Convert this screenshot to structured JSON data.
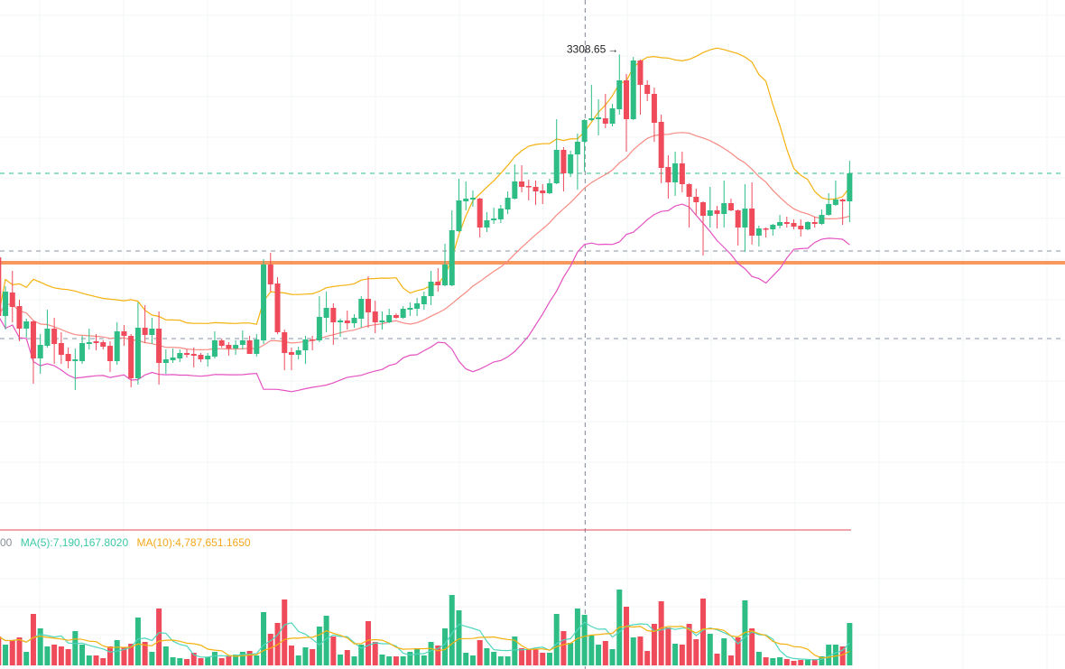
{
  "chart_data": {
    "type": "candlestick",
    "colors": {
      "up": "#2ebd85",
      "down": "#ef4b5a",
      "bb_upper": "#f5b10f",
      "bb_middle": "#f78a83",
      "bb_lower": "#e452c2",
      "support_line": "#f7985f",
      "last_price_line": "#2ebd85",
      "ref_line": "#8a94a6",
      "ma5": "#4fd6bd",
      "ma10": "#f5b10f"
    },
    "high_label": "3308.65",
    "high_arrow": "→",
    "crosshair_index": 84,
    "horizontal_lines": [
      {
        "price": 3177,
        "style": "dashed",
        "kind": "last-price"
      },
      {
        "price": 3091,
        "style": "dashed",
        "kind": "reference"
      },
      {
        "price": 3078,
        "style": "solid",
        "kind": "support"
      },
      {
        "price": 2994,
        "style": "dashed",
        "kind": "reference"
      }
    ],
    "bollinger": {
      "period": 20,
      "stddev": 2
    },
    "ohlc": [
      [
        3084,
        3086,
        3017,
        3019
      ],
      [
        3019,
        3052,
        3004,
        3046
      ],
      [
        3045,
        3069,
        3012,
        3029
      ],
      [
        3030,
        3037,
        2991,
        3005
      ],
      [
        3005,
        3016,
        2995,
        3013
      ],
      [
        3013,
        3014,
        2944,
        2972
      ],
      [
        2972,
        2999,
        2955,
        2987
      ],
      [
        2986,
        3026,
        2984,
        3005
      ],
      [
        3005,
        3017,
        2966,
        2988
      ],
      [
        2989,
        3001,
        2966,
        2976
      ],
      [
        2977,
        2984,
        2961,
        2969
      ],
      [
        2969,
        2983,
        2937,
        2971
      ],
      [
        2969,
        2997,
        2966,
        2989
      ],
      [
        2988,
        3005,
        2982,
        2990
      ],
      [
        2991,
        2999,
        2981,
        2989
      ],
      [
        2990,
        2992,
        2982,
        2985
      ],
      [
        2986,
        2991,
        2957,
        2969
      ],
      [
        2969,
        3012,
        2965,
        3002
      ],
      [
        3002,
        3009,
        2986,
        2997
      ],
      [
        2997,
        2999,
        2940,
        2950
      ],
      [
        2950,
        3034,
        2943,
        3006
      ],
      [
        3006,
        3031,
        2989,
        2998
      ],
      [
        2998,
        3017,
        2988,
        3005
      ],
      [
        3005,
        3024,
        2943,
        2967
      ],
      [
        2967,
        2982,
        2955,
        2971
      ],
      [
        2970,
        2983,
        2967,
        2973
      ],
      [
        2972,
        2982,
        2968,
        2978
      ],
      [
        2978,
        2982,
        2973,
        2976
      ],
      [
        2977,
        2984,
        2962,
        2975
      ],
      [
        2976,
        2978,
        2968,
        2971
      ],
      [
        2971,
        2978,
        2963,
        2975
      ],
      [
        2974,
        3002,
        2972,
        2992
      ],
      [
        2992,
        2994,
        2984,
        2986
      ],
      [
        2987,
        2990,
        2975,
        2983
      ],
      [
        2983,
        2992,
        2976,
        2987
      ],
      [
        2987,
        3003,
        2982,
        2992
      ],
      [
        2992,
        2997,
        2977,
        2977
      ],
      [
        2977,
        2999,
        2974,
        2993
      ],
      [
        2992,
        3082,
        2988,
        3076
      ],
      [
        3076,
        3089,
        3046,
        3054
      ],
      [
        3055,
        3062,
        2999,
        3001
      ],
      [
        3001,
        3004,
        2959,
        2978
      ],
      [
        2979,
        2984,
        2959,
        2976
      ],
      [
        2976,
        2985,
        2971,
        2981
      ],
      [
        2981,
        2997,
        2966,
        2993
      ],
      [
        2993,
        2997,
        2981,
        2992
      ],
      [
        2992,
        3041,
        2990,
        3018
      ],
      [
        3017,
        3046,
        3001,
        3028
      ],
      [
        3028,
        3033,
        2987,
        3012
      ],
      [
        3012,
        3016,
        2996,
        3014
      ],
      [
        3014,
        3025,
        3004,
        3011
      ],
      [
        3011,
        3021,
        3006,
        3017
      ],
      [
        3016,
        3041,
        3006,
        3038
      ],
      [
        3038,
        3063,
        3006,
        3023
      ],
      [
        3024,
        3036,
        3000,
        3012
      ],
      [
        3012,
        3024,
        3004,
        3014
      ],
      [
        3012,
        3027,
        3011,
        3020
      ],
      [
        3020,
        3022,
        3016,
        3017
      ],
      [
        3017,
        3030,
        3016,
        3027
      ],
      [
        3026,
        3034,
        3019,
        3028
      ],
      [
        3027,
        3039,
        3019,
        3033
      ],
      [
        3032,
        3046,
        3026,
        3041
      ],
      [
        3041,
        3069,
        3031,
        3057
      ],
      [
        3057,
        3072,
        3046,
        3053
      ],
      [
        3053,
        3099,
        3052,
        3076
      ],
      [
        3053,
        3136,
        3052,
        3114
      ],
      [
        3113,
        3171,
        3112,
        3147
      ],
      [
        3146,
        3168,
        3136,
        3149
      ],
      [
        3148,
        3158,
        3140,
        3150
      ],
      [
        3149,
        3150,
        3106,
        3117
      ],
      [
        3117,
        3134,
        3112,
        3125
      ],
      [
        3125,
        3139,
        3121,
        3127
      ],
      [
        3126,
        3142,
        3122,
        3138
      ],
      [
        3137,
        3157,
        3132,
        3150
      ],
      [
        3149,
        3187,
        3148,
        3168
      ],
      [
        3168,
        3186,
        3156,
        3162
      ],
      [
        3163,
        3170,
        3147,
        3162
      ],
      [
        3162,
        3169,
        3142,
        3157
      ],
      [
        3158,
        3165,
        3143,
        3155
      ],
      [
        3155,
        3171,
        3154,
        3166
      ],
      [
        3166,
        3237,
        3165,
        3203
      ],
      [
        3203,
        3206,
        3157,
        3177
      ],
      [
        3177,
        3202,
        3173,
        3198
      ],
      [
        3198,
        3221,
        3159,
        3212
      ],
      [
        3212,
        3237,
        3179,
        3236
      ],
      [
        3236,
        3275,
        3235,
        3238
      ],
      [
        3237,
        3259,
        3219,
        3239
      ],
      [
        3238,
        3265,
        3227,
        3232
      ],
      [
        3232,
        3254,
        3229,
        3249
      ],
      [
        3248,
        3308.65,
        3242,
        3280
      ],
      [
        3280,
        3287,
        3201,
        3237
      ],
      [
        3237,
        3306,
        3236,
        3302
      ],
      [
        3302,
        3303,
        3242,
        3275
      ],
      [
        3275,
        3280,
        3257,
        3265
      ],
      [
        3265,
        3272,
        3212,
        3233
      ],
      [
        3234,
        3242,
        3166,
        3183
      ],
      [
        3184,
        3197,
        3149,
        3167
      ],
      [
        3167,
        3201,
        3152,
        3188
      ],
      [
        3188,
        3201,
        3156,
        3165
      ],
      [
        3165,
        3166,
        3117,
        3151
      ],
      [
        3151,
        3160,
        3131,
        3145
      ],
      [
        3145,
        3146,
        3086,
        3130
      ],
      [
        3130,
        3162,
        3117,
        3136
      ],
      [
        3136,
        3141,
        3116,
        3132
      ],
      [
        3132,
        3169,
        3117,
        3144
      ],
      [
        3144,
        3149,
        3135,
        3136
      ],
      [
        3136,
        3137,
        3097,
        3117
      ],
      [
        3117,
        3165,
        3090,
        3138
      ],
      [
        3138,
        3167,
        3098,
        3108
      ],
      [
        3108,
        3119,
        3096,
        3116
      ],
      [
        3116,
        3117,
        3106,
        3115
      ],
      [
        3115,
        3121,
        3108,
        3120
      ],
      [
        3119,
        3131,
        3116,
        3123
      ],
      [
        3123,
        3129,
        3117,
        3121
      ],
      [
        3122,
        3126,
        3115,
        3118
      ],
      [
        3119,
        3126,
        3107,
        3115
      ],
      [
        3115,
        3124,
        3114,
        3123
      ],
      [
        3123,
        3129,
        3117,
        3121
      ],
      [
        3121,
        3137,
        3120,
        3131
      ],
      [
        3131,
        3155,
        3130,
        3143
      ],
      [
        3142,
        3169,
        3141,
        3148
      ],
      [
        3148,
        3149,
        3120,
        3146
      ],
      [
        3146,
        3191,
        3123,
        3177
      ]
    ],
    "volume": [
      9600000,
      6900000,
      8400000,
      9300000,
      4500000,
      17100000,
      12300000,
      6300000,
      6900000,
      6300000,
      5400000,
      11400000,
      6900000,
      3300000,
      3300000,
      2400000,
      6300000,
      8400000,
      6000000,
      7200000,
      15900000,
      7800000,
      4500000,
      18900000,
      6300000,
      2700000,
      2400000,
      2100000,
      4200000,
      2400000,
      2700000,
      4500000,
      2400000,
      3300000,
      3600000,
      4500000,
      4800000,
      3300000,
      17700000,
      10500000,
      14100000,
      21900000,
      6600000,
      3300000,
      6000000,
      5400000,
      12900000,
      16500000,
      9600000,
      3600000,
      5100000,
      3000000,
      6900000,
      14700000,
      7800000,
      3600000,
      3000000,
      3000000,
      3000000,
      4500000,
      5700000,
      3300000,
      7800000,
      6600000,
      12300000,
      23400000,
      18300000,
      4200000,
      3300000,
      8400000,
      5700000,
      4500000,
      3000000,
      3000000,
      9600000,
      5700000,
      5400000,
      5400000,
      4200000,
      4200000,
      17100000,
      11400000,
      7500000,
      18900000,
      16800000,
      9900000,
      6900000,
      8100000,
      5400000,
      25200000,
      19500000,
      9300000,
      9600000,
      4800000,
      13800000,
      21300000,
      12600000,
      7200000,
      6900000,
      13800000,
      8700000,
      22200000,
      10500000,
      3900000,
      9000000,
      3300000,
      9300000,
      21600000,
      12300000,
      4500000,
      2700000,
      2400000,
      2700000,
      2100000,
      1500000,
      1800000,
      1800000,
      2100000,
      3000000,
      6900000,
      6900000,
      6300000,
      14100000
    ],
    "volume_legend": {
      "prev_tail": "00",
      "ma5": "MA(5):7,190,167.8020",
      "ma10": "MA(10):4,787,651.1650"
    }
  }
}
